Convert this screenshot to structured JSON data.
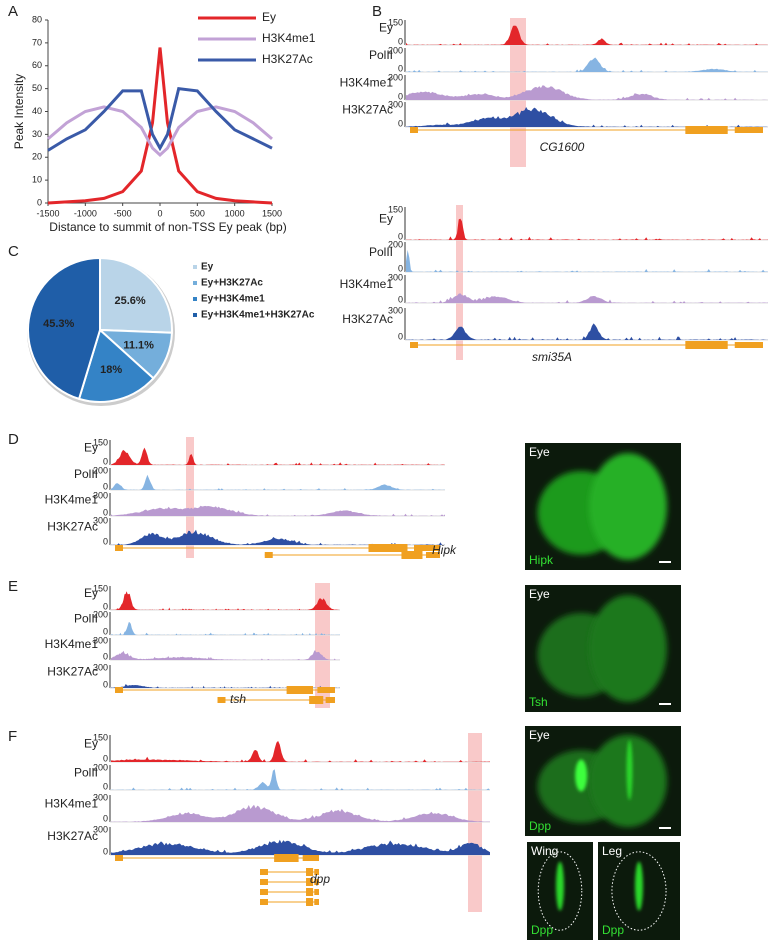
{
  "panel_labels": [
    "A",
    "B",
    "C",
    "D",
    "E",
    "F"
  ],
  "chart_data": [
    {
      "type": "line",
      "xlabel": "Distance to summit of non-TSS Ey peak (bp)",
      "ylabel": "Peak Intensity",
      "x": [
        -1500,
        -1250,
        -1000,
        -750,
        -500,
        -250,
        -100,
        0,
        100,
        250,
        500,
        750,
        1000,
        1250,
        1500
      ],
      "series": [
        {
          "name": "Ey",
          "color": "#e3262a",
          "values": [
            0,
            0.5,
            1,
            2,
            5,
            14,
            35,
            68,
            35,
            14,
            5,
            2,
            1,
            0.5,
            0
          ]
        },
        {
          "name": "H3K4me1",
          "color": "#c2a2d6",
          "values": [
            28,
            35,
            40,
            42,
            40,
            33,
            24,
            21,
            24,
            33,
            40,
            42,
            40,
            35,
            28
          ]
        },
        {
          "name": "H3K27Ac",
          "color": "#3a5aa8",
          "values": [
            23,
            28,
            32,
            40,
            49,
            49,
            30,
            24,
            30,
            50,
            49,
            40,
            32,
            28,
            24
          ]
        }
      ],
      "xlim": [
        -1500,
        1500
      ],
      "xticks": [
        -1500,
        -1000,
        -500,
        0,
        500,
        1000,
        1500
      ],
      "ylim": [
        0,
        80
      ],
      "yticks": [
        0,
        10,
        20,
        30,
        40,
        50,
        60,
        70,
        80
      ],
      "legend": "upper right"
    },
    {
      "type": "pie",
      "categories": [
        "Ey",
        "Ey+H3K27Ac",
        "Ey+H3K4me1",
        "Ey+H3K4me1+H3K27Ac"
      ],
      "values": [
        25.6,
        11.1,
        18,
        45.3
      ],
      "value_labels": [
        "25.6%",
        "11.1%",
        "18%",
        "45.3%"
      ],
      "colors": [
        "#b9d4e8",
        "#74aedb",
        "#3483c6",
        "#1f5ea8"
      ]
    }
  ],
  "track_blocks": [
    {
      "gene": "CG1600",
      "tracks": [
        {
          "name": "Ey",
          "max": 150,
          "min": 0,
          "color": "#e3262a"
        },
        {
          "name": "PolII",
          "max": 200,
          "min": 0,
          "color": "#86b4e2"
        },
        {
          "name": "H3K4me1",
          "max": 300,
          "min": 0,
          "color": "#b99ad0"
        },
        {
          "name": "H3K27Ac",
          "max": 300,
          "min": 0,
          "color": "#2e4fa3"
        }
      ]
    },
    {
      "gene": "smi35A",
      "tracks": [
        {
          "name": "Ey",
          "max": 150,
          "min": 0,
          "color": "#e3262a"
        },
        {
          "name": "PolII",
          "max": 200,
          "min": 0,
          "color": "#86b4e2"
        },
        {
          "name": "H3K4me1",
          "max": 300,
          "min": 0,
          "color": "#b99ad0"
        },
        {
          "name": "H3K27Ac",
          "max": 300,
          "min": 0,
          "color": "#2e4fa3"
        }
      ]
    },
    {
      "gene": "Hipk",
      "tracks": [
        {
          "name": "Ey",
          "max": 150,
          "min": 0,
          "color": "#e3262a"
        },
        {
          "name": "PolII",
          "max": 200,
          "min": 0,
          "color": "#86b4e2"
        },
        {
          "name": "H3K4me1",
          "max": 300,
          "min": 0,
          "color": "#b99ad0"
        },
        {
          "name": "H3K27Ac",
          "max": 300,
          "min": 0,
          "color": "#2e4fa3"
        }
      ]
    },
    {
      "gene": "tsh",
      "tracks": [
        {
          "name": "Ey",
          "max": 150,
          "min": 0,
          "color": "#e3262a"
        },
        {
          "name": "PolII",
          "max": 200,
          "min": 0,
          "color": "#86b4e2"
        },
        {
          "name": "H3K4me1",
          "max": 300,
          "min": 0,
          "color": "#b99ad0"
        },
        {
          "name": "H3K27Ac",
          "max": 300,
          "min": 0,
          "color": "#2e4fa3"
        }
      ]
    },
    {
      "gene": "dpp",
      "tracks": [
        {
          "name": "Ey",
          "max": 150,
          "min": 0,
          "color": "#e3262a"
        },
        {
          "name": "PolII",
          "max": 200,
          "min": 0,
          "color": "#86b4e2"
        },
        {
          "name": "H3K4me1",
          "max": 300,
          "min": 0,
          "color": "#b99ad0"
        },
        {
          "name": "H3K27Ac",
          "max": 300,
          "min": 0,
          "color": "#2e4fa3"
        }
      ]
    }
  ],
  "images": [
    {
      "region": "Eye",
      "stain": "Hipk"
    },
    {
      "region": "Eye",
      "stain": "Tsh"
    },
    {
      "region": "Eye",
      "stain": "Dpp"
    },
    {
      "region": "Wing",
      "stain": "Dpp"
    },
    {
      "region": "Leg",
      "stain": "Dpp"
    }
  ]
}
